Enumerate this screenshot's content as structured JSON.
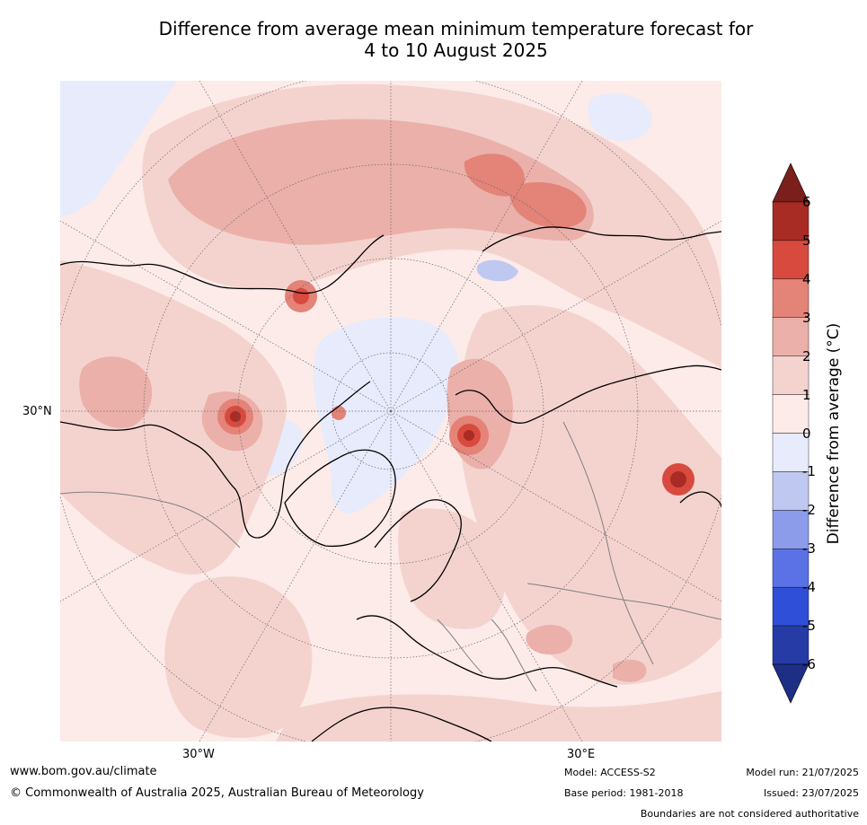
{
  "title": {
    "line1": "Difference from average mean minimum temperature forecast for",
    "line2": "4 to 10 August 2025"
  },
  "map": {
    "lat_label": "30°N",
    "lon_labels": [
      "30°W",
      "30°E"
    ],
    "colors": {
      "pos_0_1": "#fcebe8",
      "pos_1_2": "#f4d3cf",
      "pos_2_3": "#ebb0aa",
      "pos_3_4": "#e48378",
      "pos_4_5": "#d94a3e",
      "pos_5_6": "#a82b24",
      "neg_0_1": "#e7ebfb",
      "neg_1_2": "#bfc8f0",
      "coast": "#000000",
      "border": "#808080"
    }
  },
  "colorbar": {
    "title": "Difference from average (°C)",
    "ticks": [
      "6",
      "5",
      "4",
      "3",
      "2",
      "1",
      "0",
      "-1",
      "-2",
      "-3",
      "-4",
      "-5",
      "-6"
    ],
    "colors_top_to_bottom": [
      "#7a1f1b",
      "#a82b24",
      "#d94a3e",
      "#e48378",
      "#ebb0aa",
      "#f4d3cf",
      "#fcebe8",
      "#e7ebfb",
      "#bfc8f0",
      "#8c9bea",
      "#5a72e6",
      "#2f4fd8",
      "#263ba6",
      "#1d2f85"
    ]
  },
  "footer": {
    "url": "www.bom.gov.au/climate",
    "copyright": "© Commonwealth of Australia 2025, Australian Bureau of Meteorology",
    "model": "Model: ACCESS-S2",
    "base_period": "Base period: 1981-2018",
    "model_run": "Model run: 21/07/2025",
    "issued": "Issued: 23/07/2025",
    "disclaimer": "Boundaries are not considered authoritative"
  }
}
